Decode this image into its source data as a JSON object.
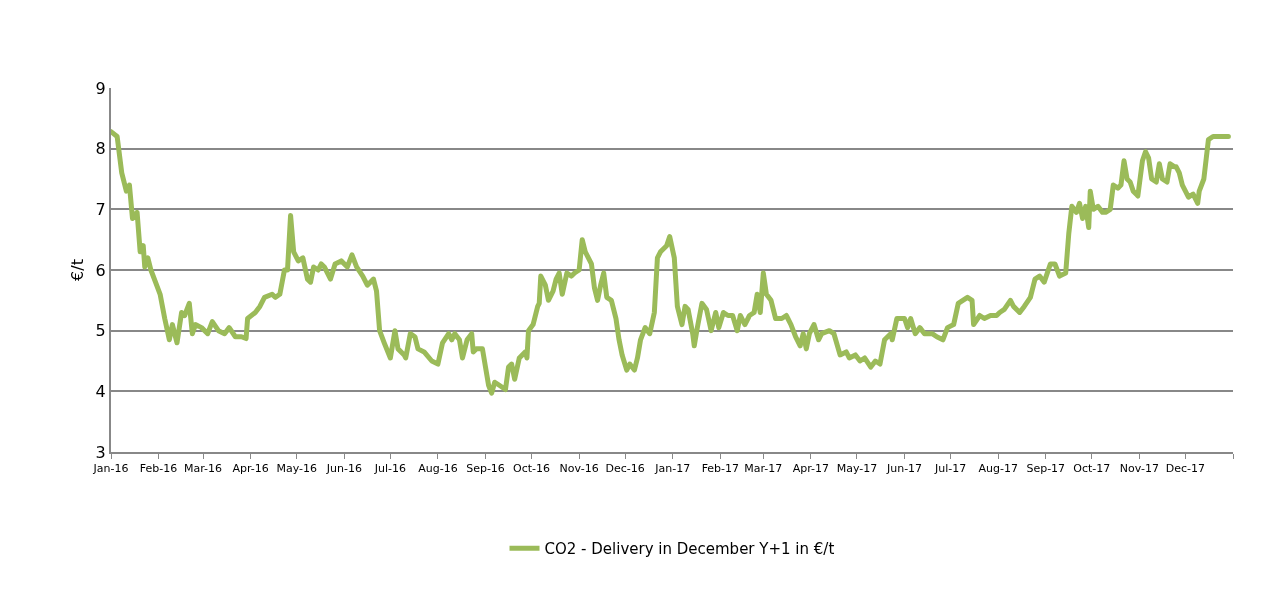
{
  "chart_data": {
    "type": "line",
    "ylabel": "€/t",
    "x": [
      "2016-01-01",
      "2016-01-05",
      "2016-01-08",
      "2016-01-11",
      "2016-01-13",
      "2016-01-15",
      "2016-01-18",
      "2016-01-20",
      "2016-01-22",
      "2016-01-23",
      "2016-01-25",
      "2016-01-27",
      "2016-01-30",
      "2016-02-02",
      "2016-02-05",
      "2016-02-08",
      "2016-02-10",
      "2016-02-13",
      "2016-02-16",
      "2016-02-18",
      "2016-02-21",
      "2016-02-23",
      "2016-02-25",
      "2016-02-29",
      "2016-03-04",
      "2016-03-07",
      "2016-03-11",
      "2016-03-15",
      "2016-03-18",
      "2016-03-22",
      "2016-03-26",
      "2016-03-29",
      "2016-03-30",
      "2016-04-04",
      "2016-04-07",
      "2016-04-10",
      "2016-04-15",
      "2016-04-17",
      "2016-04-20",
      "2016-04-23",
      "2016-04-25",
      "2016-04-27",
      "2016-04-29",
      "2016-05-02",
      "2016-05-05",
      "2016-05-08",
      "2016-05-10",
      "2016-05-12",
      "2016-05-15",
      "2016-05-17",
      "2016-05-19",
      "2016-05-23",
      "2016-05-26",
      "2016-05-30",
      "2016-06-03",
      "2016-06-06",
      "2016-06-09",
      "2016-06-13",
      "2016-06-16",
      "2016-06-20",
      "2016-06-22",
      "2016-06-24",
      "2016-06-27",
      "2016-07-01",
      "2016-07-04",
      "2016-07-06",
      "2016-07-10",
      "2016-07-11",
      "2016-07-14",
      "2016-07-17",
      "2016-07-19",
      "2016-07-23",
      "2016-07-28",
      "2016-08-01",
      "2016-08-04",
      "2016-08-08",
      "2016-08-10",
      "2016-08-12",
      "2016-08-15",
      "2016-08-17",
      "2016-08-20",
      "2016-08-23",
      "2016-08-24",
      "2016-08-26",
      "2016-08-30",
      "2016-09-01",
      "2016-09-03",
      "2016-09-05",
      "2016-09-07",
      "2016-09-10",
      "2016-09-14",
      "2016-09-16",
      "2016-09-18",
      "2016-09-20",
      "2016-09-23",
      "2016-09-27",
      "2016-09-28",
      "2016-09-29",
      "2016-10-02",
      "2016-10-05",
      "2016-10-06",
      "2016-10-07",
      "2016-10-10",
      "2016-10-12",
      "2016-10-15",
      "2016-10-17",
      "2016-10-19",
      "2016-10-21",
      "2016-10-24",
      "2016-10-27",
      "2016-10-29",
      "2016-11-01",
      "2016-11-03",
      "2016-11-05",
      "2016-11-09",
      "2016-11-11",
      "2016-11-13",
      "2016-11-15",
      "2016-11-17",
      "2016-11-19",
      "2016-11-22",
      "2016-11-25",
      "2016-11-27",
      "2016-11-29",
      "2016-12-02",
      "2016-12-04",
      "2016-12-07",
      "2016-12-09",
      "2016-12-11",
      "2016-12-14",
      "2016-12-17",
      "2016-12-20",
      "2016-12-22",
      "2016-12-24",
      "2016-12-28",
      "2016-12-30",
      "2017-01-02",
      "2017-01-04",
      "2017-01-07",
      "2017-01-09",
      "2017-01-11",
      "2017-01-14",
      "2017-01-15",
      "2017-01-17",
      "2017-01-20",
      "2017-01-23",
      "2017-01-26",
      "2017-01-29",
      "2017-01-31",
      "2017-02-03",
      "2017-02-06",
      "2017-02-09",
      "2017-02-12",
      "2017-02-14",
      "2017-02-17",
      "2017-02-20",
      "2017-02-23",
      "2017-02-25",
      "2017-02-27",
      "2017-03-01",
      "2017-03-03",
      "2017-03-06",
      "2017-03-09",
      "2017-03-13",
      "2017-03-16",
      "2017-03-19",
      "2017-03-22",
      "2017-03-25",
      "2017-03-27",
      "2017-03-29",
      "2017-03-31",
      "2017-04-03",
      "2017-04-06",
      "2017-04-08",
      "2017-04-13",
      "2017-04-16",
      "2017-04-20",
      "2017-04-24",
      "2017-04-26",
      "2017-04-30",
      "2017-05-03",
      "2017-05-06",
      "2017-05-10",
      "2017-05-13",
      "2017-05-16",
      "2017-05-19",
      "2017-05-23",
      "2017-05-24",
      "2017-05-27",
      "2017-06-01",
      "2017-06-03",
      "2017-06-05",
      "2017-06-08",
      "2017-06-11",
      "2017-06-14",
      "2017-06-19",
      "2017-06-22",
      "2017-06-26",
      "2017-06-29",
      "2017-07-03",
      "2017-07-06",
      "2017-07-09",
      "2017-07-12",
      "2017-07-15",
      "2017-07-16",
      "2017-07-20",
      "2017-07-23",
      "2017-07-27",
      "2017-07-31",
      "2017-08-02",
      "2017-08-05",
      "2017-08-09",
      "2017-08-11",
      "2017-08-15",
      "2017-08-18",
      "2017-08-22",
      "2017-08-25",
      "2017-08-28",
      "2017-08-31",
      "2017-09-04",
      "2017-09-07",
      "2017-09-10",
      "2017-09-14",
      "2017-09-16",
      "2017-09-18",
      "2017-09-21",
      "2017-09-23",
      "2017-09-25",
      "2017-09-27",
      "2017-09-29",
      "2017-09-30",
      "2017-10-02",
      "2017-10-05",
      "2017-10-08",
      "2017-10-10",
      "2017-10-13",
      "2017-10-15",
      "2017-10-18",
      "2017-10-20",
      "2017-10-22",
      "2017-10-24",
      "2017-10-26",
      "2017-10-28",
      "2017-10-30",
      "2017-10-31",
      "2017-11-03",
      "2017-11-05",
      "2017-11-07",
      "2017-11-09",
      "2017-11-12",
      "2017-11-14",
      "2017-11-16",
      "2017-11-19",
      "2017-11-21",
      "2017-11-24",
      "2017-11-25",
      "2017-11-27",
      "2017-11-29",
      "2017-12-01",
      "2017-12-03",
      "2017-12-06",
      "2017-12-09",
      "2017-12-10",
      "2017-12-13",
      "2017-12-16",
      "2017-12-19",
      "2017-12-22",
      "2017-12-29"
    ],
    "series": [
      {
        "name": "CO2 - Delivery in December Y+1 in €/t",
        "color": "#9bbb59",
        "values": [
          8.28,
          8.2,
          7.6,
          7.3,
          7.4,
          6.85,
          6.95,
          6.3,
          6.4,
          6.05,
          6.2,
          6.0,
          5.8,
          5.6,
          5.2,
          4.85,
          5.1,
          4.8,
          5.3,
          5.25,
          5.45,
          4.95,
          5.1,
          5.05,
          4.95,
          5.15,
          5.0,
          4.95,
          5.05,
          4.9,
          4.9,
          4.87,
          5.2,
          5.3,
          5.4,
          5.55,
          5.6,
          5.55,
          5.6,
          6.0,
          6.0,
          6.9,
          6.3,
          6.15,
          6.2,
          5.85,
          5.8,
          6.05,
          6.0,
          6.1,
          6.05,
          5.85,
          6.1,
          6.15,
          6.05,
          6.25,
          6.05,
          5.9,
          5.75,
          5.85,
          5.65,
          5.0,
          4.8,
          4.55,
          5.0,
          4.7,
          4.6,
          4.55,
          4.95,
          4.9,
          4.7,
          4.65,
          4.5,
          4.45,
          4.8,
          4.95,
          4.85,
          4.95,
          4.85,
          4.55,
          4.85,
          4.95,
          4.65,
          4.7,
          4.7,
          4.4,
          4.1,
          3.97,
          4.15,
          4.1,
          4.03,
          4.4,
          4.45,
          4.2,
          4.55,
          4.65,
          4.55,
          5.0,
          5.1,
          5.4,
          5.45,
          5.9,
          5.75,
          5.5,
          5.65,
          5.85,
          5.95,
          5.6,
          5.95,
          5.9,
          5.95,
          6.0,
          6.5,
          6.3,
          6.1,
          5.7,
          5.5,
          5.75,
          5.95,
          5.55,
          5.5,
          5.2,
          4.85,
          4.6,
          4.35,
          4.45,
          4.35,
          4.55,
          4.85,
          5.05,
          4.95,
          5.3,
          6.2,
          6.3,
          6.4,
          6.55,
          6.2,
          5.4,
          5.1,
          5.4,
          5.35,
          4.95,
          4.75,
          5.05,
          5.45,
          5.35,
          5.0,
          5.3,
          5.05,
          5.3,
          5.25,
          5.25,
          5.0,
          5.25,
          5.1,
          5.25,
          5.3,
          5.6,
          5.3,
          5.95,
          5.6,
          5.5,
          5.2,
          5.2,
          5.25,
          5.1,
          4.9,
          4.75,
          4.95,
          4.7,
          4.95,
          5.1,
          4.85,
          4.95,
          5.0,
          4.95,
          4.6,
          4.65,
          4.55,
          4.6,
          4.5,
          4.55,
          4.4,
          4.5,
          4.45,
          4.85,
          4.95,
          4.85,
          5.2,
          5.2,
          5.05,
          5.2,
          4.95,
          5.05,
          4.95,
          4.95,
          4.9,
          4.85,
          5.05,
          5.1,
          5.45,
          5.5,
          5.55,
          5.5,
          5.1,
          5.25,
          5.2,
          5.25,
          5.25,
          5.3,
          5.35,
          5.5,
          5.4,
          5.3,
          5.4,
          5.55,
          5.85,
          5.9,
          5.8,
          6.1,
          6.1,
          5.9,
          5.95,
          6.6,
          7.05,
          6.95,
          7.1,
          6.85,
          7.05,
          6.7,
          7.3,
          7.0,
          7.05,
          6.95,
          6.95,
          7.0,
          7.4,
          7.35,
          7.4,
          7.8,
          7.5,
          7.45,
          7.3,
          7.25,
          7.22,
          7.8,
          7.95,
          7.85,
          7.5,
          7.45,
          7.75,
          7.5,
          7.45,
          7.75,
          7.7,
          7.7,
          7.6,
          7.4,
          7.3,
          7.2,
          7.25,
          7.1,
          7.3,
          7.5,
          8.15,
          8.2,
          8.2,
          8.2
        ]
      }
    ],
    "xlim": [
      "2016-01-01",
      "2018-01-01"
    ],
    "xticks": [
      {
        "value": "2016-01-01",
        "label": "Jan-16"
      },
      {
        "value": "2016-02-01",
        "label": "Feb-16"
      },
      {
        "value": "2016-03-01",
        "label": "Mar-16"
      },
      {
        "value": "2016-04-01",
        "label": "Apr-16"
      },
      {
        "value": "2016-05-01",
        "label": "May-16"
      },
      {
        "value": "2016-06-01",
        "label": "Jun-16"
      },
      {
        "value": "2016-07-01",
        "label": "Jul-16"
      },
      {
        "value": "2016-08-01",
        "label": "Aug-16"
      },
      {
        "value": "2016-09-01",
        "label": "Sep-16"
      },
      {
        "value": "2016-10-01",
        "label": "Oct-16"
      },
      {
        "value": "2016-11-01",
        "label": "Nov-16"
      },
      {
        "value": "2016-12-01",
        "label": "Dec-16"
      },
      {
        "value": "2017-01-01",
        "label": "Jan-17"
      },
      {
        "value": "2017-02-01",
        "label": "Feb-17"
      },
      {
        "value": "2017-03-01",
        "label": "Mar-17"
      },
      {
        "value": "2017-04-01",
        "label": "Apr-17"
      },
      {
        "value": "2017-05-01",
        "label": "May-17"
      },
      {
        "value": "2017-06-01",
        "label": "Jun-17"
      },
      {
        "value": "2017-07-01",
        "label": "Jul-17"
      },
      {
        "value": "2017-08-01",
        "label": "Aug-17"
      },
      {
        "value": "2017-09-01",
        "label": "Sep-17"
      },
      {
        "value": "2017-10-01",
        "label": "Oct-17"
      },
      {
        "value": "2017-11-01",
        "label": "Nov-17"
      },
      {
        "value": "2017-12-01",
        "label": "Dec-17"
      },
      {
        "value": "2018-01-01",
        "label": null
      }
    ],
    "ylim": [
      3,
      9
    ],
    "yticks": [
      3,
      4,
      5,
      6,
      7,
      8,
      9
    ],
    "grid": "y",
    "legend": "bottom",
    "marker": "none",
    "line_style": "solid"
  }
}
